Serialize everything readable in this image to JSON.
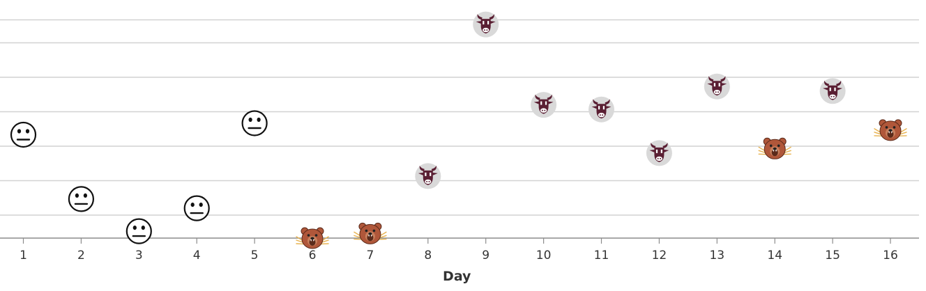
{
  "chart_data": {
    "type": "scatter",
    "title": "",
    "xlabel": "Day",
    "ylabel": "",
    "xlim": [
      0.6,
      16.5
    ],
    "ylim": [
      0,
      100
    ],
    "grid": true,
    "y_gridlines": [
      10,
      25,
      40,
      55,
      70,
      85,
      95
    ],
    "x_ticks": [
      1,
      2,
      3,
      4,
      5,
      6,
      7,
      8,
      9,
      10,
      11,
      12,
      13,
      14,
      15,
      16
    ],
    "marker_types": {
      "neutral": "neutral-face-icon",
      "bull": "bull-icon",
      "bear": "bear-icon"
    },
    "colors": {
      "bull_badge": "#d9d9d9",
      "bull_head": "#5a1f33",
      "bear_fur": "#b0573a",
      "bear_dark": "#5b2a1a",
      "bear_claws": "#e7b24f",
      "neutral_face": "#111111"
    },
    "points": [
      {
        "x": 1,
        "y": 45,
        "marker": "neutral"
      },
      {
        "x": 2,
        "y": 17,
        "marker": "neutral"
      },
      {
        "x": 3,
        "y": 3,
        "marker": "neutral"
      },
      {
        "x": 4,
        "y": 13,
        "marker": "neutral"
      },
      {
        "x": 5,
        "y": 50,
        "marker": "neutral"
      },
      {
        "x": 6,
        "y": 0,
        "marker": "bear"
      },
      {
        "x": 7,
        "y": 2,
        "marker": "bear"
      },
      {
        "x": 8,
        "y": 27,
        "marker": "bull"
      },
      {
        "x": 9,
        "y": 93,
        "marker": "bull"
      },
      {
        "x": 10,
        "y": 58,
        "marker": "bull"
      },
      {
        "x": 11,
        "y": 56,
        "marker": "bull"
      },
      {
        "x": 12,
        "y": 37,
        "marker": "bull"
      },
      {
        "x": 13,
        "y": 66,
        "marker": "bull"
      },
      {
        "x": 14,
        "y": 39,
        "marker": "bear"
      },
      {
        "x": 15,
        "y": 64,
        "marker": "bull"
      },
      {
        "x": 16,
        "y": 47,
        "marker": "bear"
      }
    ]
  }
}
